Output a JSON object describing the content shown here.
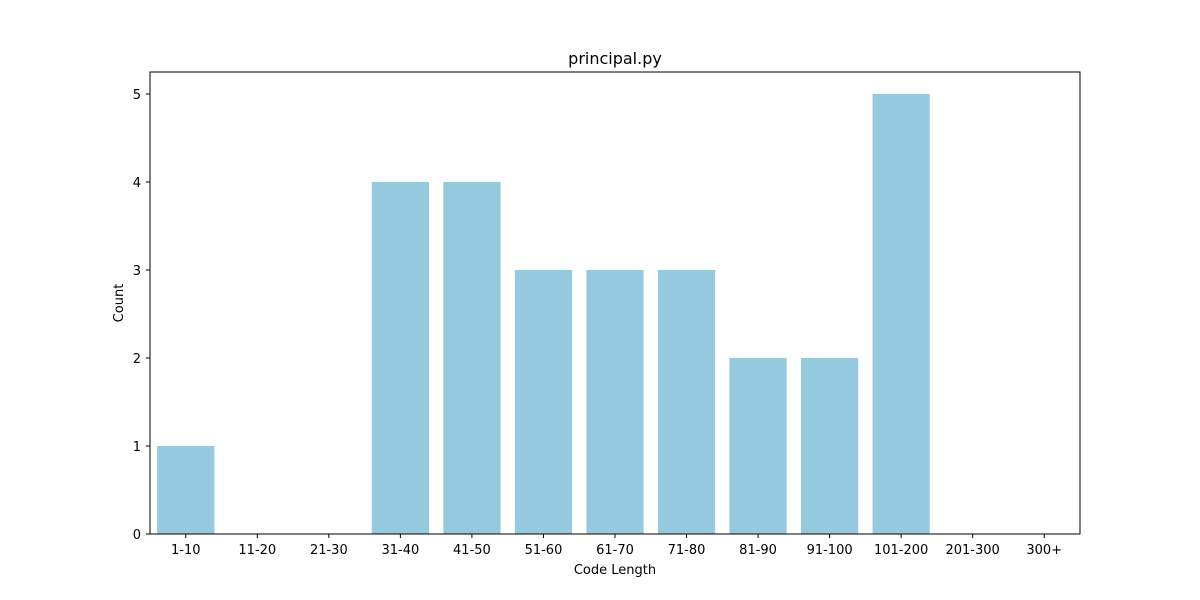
{
  "chart_data": {
    "type": "bar",
    "title": "principal.py",
    "xlabel": "Code Length",
    "ylabel": "Count",
    "categories": [
      "1-10",
      "11-20",
      "21-30",
      "31-40",
      "41-50",
      "51-60",
      "61-70",
      "71-80",
      "81-90",
      "91-100",
      "101-200",
      "201-300",
      "300+"
    ],
    "values": [
      1,
      0,
      0,
      4,
      4,
      3,
      3,
      3,
      2,
      2,
      5,
      0,
      0
    ],
    "ylim": [
      0,
      5.25
    ],
    "yticks": [
      0,
      1,
      2,
      3,
      4,
      5
    ],
    "bar_color": "#95c9de",
    "grid": false,
    "legend": "none"
  }
}
